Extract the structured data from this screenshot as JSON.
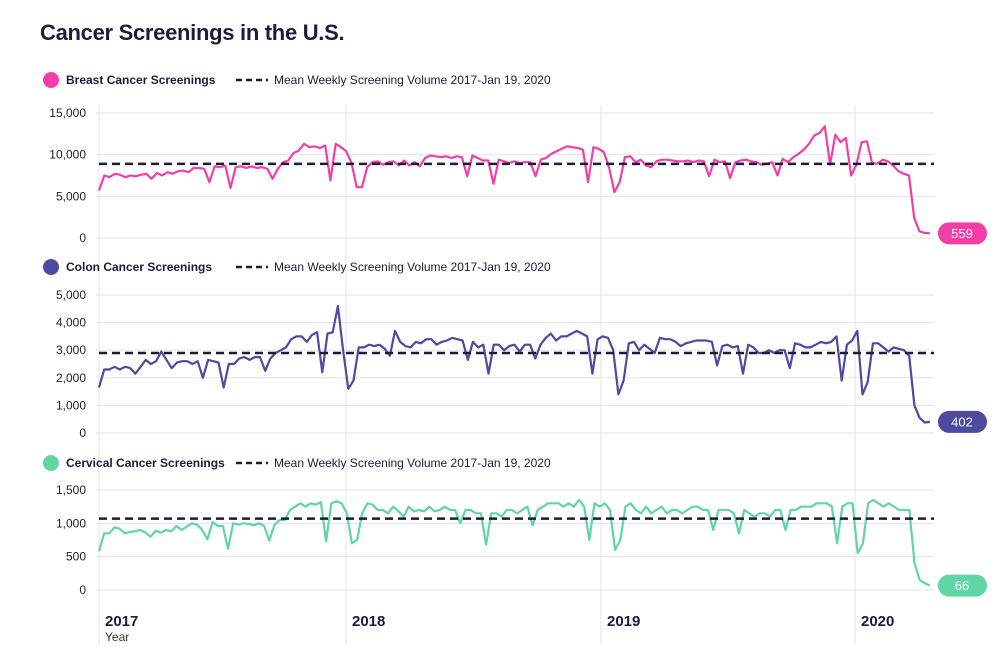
{
  "title": "Cancer Screenings in the U.S.",
  "chart_data": [
    {
      "type": "line",
      "series": [
        {
          "name": "Breast Cancer Screenings",
          "color": "#f23fa8",
          "values": [
            5700,
            7500,
            7300,
            7700,
            7600,
            7300,
            7500,
            7400,
            7600,
            7700,
            7100,
            7800,
            7500,
            7900,
            7700,
            8000,
            8100,
            7900,
            8400,
            8400,
            8300,
            6700,
            8600,
            8500,
            8700,
            6000,
            8500,
            8600,
            8400,
            8600,
            8400,
            8500,
            8300,
            7100,
            8300,
            9100,
            9300,
            10200,
            10500,
            11300,
            10900,
            11000,
            10800,
            11100,
            6900,
            11300,
            10900,
            10400,
            9000,
            6100,
            6100,
            8500,
            9100,
            9200,
            8800,
            9100,
            9200,
            8700,
            9300,
            8700,
            9100,
            8600,
            9600,
            9900,
            9800,
            9700,
            9800,
            9600,
            9800,
            9700,
            7400,
            9900,
            9600,
            9300,
            9300,
            6500,
            9400,
            9200,
            9000,
            9200,
            9000,
            9100,
            9100,
            7400,
            9400,
            9600,
            10100,
            10400,
            10700,
            11000,
            10900,
            10800,
            10600,
            6700,
            10900,
            10700,
            10300,
            8400,
            5500,
            6700,
            9700,
            9800,
            9100,
            9400,
            8700,
            8500,
            9200,
            9400,
            9400,
            9300,
            9200,
            9200,
            9300,
            9100,
            9300,
            9200,
            7400,
            9400,
            9100,
            9200,
            7200,
            9100,
            9300,
            9400,
            9200,
            9100,
            8800,
            8900,
            9100,
            7500,
            9500,
            9100,
            9700,
            10100,
            10600,
            11300,
            12300,
            12600,
            13400,
            8800,
            12400,
            11500,
            12000,
            7500,
            8800,
            11500,
            11600,
            9000,
            8900,
            9400,
            9200,
            8700,
            8000,
            7700,
            7500,
            2400,
            800,
            600,
            559
          ]
        },
        {
          "name": "Mean Weekly Screening Volume 2017-Jan 19, 2020",
          "value": 8900
        }
      ],
      "ylim": [
        0,
        15000
      ],
      "yticks": [
        "15,000",
        "10,000",
        "5,000",
        "0"
      ],
      "yticks_values": [
        15000,
        10000,
        5000,
        0
      ],
      "last_label": "559"
    },
    {
      "type": "line",
      "series": [
        {
          "name": "Colon Cancer Screenings",
          "color": "#4e4aa0",
          "values": [
            1650,
            2300,
            2300,
            2400,
            2300,
            2400,
            2350,
            2150,
            2400,
            2650,
            2500,
            2600,
            2950,
            2650,
            2350,
            2550,
            2600,
            2600,
            2500,
            2600,
            2000,
            2650,
            2600,
            2550,
            1650,
            2500,
            2500,
            2700,
            2750,
            2650,
            2750,
            2750,
            2250,
            2700,
            2900,
            3000,
            3100,
            3400,
            3500,
            3500,
            3300,
            3550,
            3650,
            2200,
            3600,
            3650,
            4600,
            3000,
            1600,
            1900,
            3100,
            3100,
            3200,
            3150,
            3200,
            3050,
            2800,
            3700,
            3300,
            3150,
            3100,
            3300,
            3250,
            3400,
            3400,
            3200,
            3300,
            3350,
            3450,
            3400,
            3350,
            2650,
            3300,
            3100,
            3200,
            2150,
            3200,
            3200,
            3000,
            3150,
            3200,
            2950,
            3200,
            3200,
            2700,
            3200,
            3450,
            3600,
            3350,
            3500,
            3500,
            3600,
            3700,
            3600,
            3500,
            2150,
            3400,
            3500,
            3450,
            3000,
            1400,
            1900,
            3250,
            3300,
            3000,
            3200,
            3050,
            2900,
            3450,
            3400,
            3400,
            3300,
            3150,
            3250,
            3300,
            3350,
            3350,
            3350,
            3300,
            2450,
            3150,
            3200,
            3100,
            3150,
            2150,
            3200,
            3100,
            2900,
            2900,
            3000,
            2900,
            3000,
            3000,
            2350,
            3250,
            3200,
            3100,
            3100,
            3200,
            3300,
            3250,
            3300,
            3500,
            1900,
            3200,
            3350,
            3700,
            1400,
            1850,
            3250,
            3250,
            3100,
            2950,
            3100,
            3050,
            3000,
            2800,
            1000,
            550,
            380,
            402
          ]
        },
        {
          "name": "Mean Weekly Screening Volume 2017-Jan 19, 2020",
          "value": 2900
        }
      ],
      "ylim": [
        0,
        5000
      ],
      "yticks": [
        "5,000",
        "4,000",
        "3,000",
        "2,000",
        "1,000",
        "0"
      ],
      "yticks_values": [
        5000,
        4000,
        3000,
        2000,
        1000,
        0
      ],
      "last_label": "402"
    },
    {
      "type": "line",
      "series": [
        {
          "name": "Cervical Cancer Screenings",
          "color": "#5fd6a4",
          "values": [
            580,
            850,
            850,
            940,
            920,
            850,
            870,
            880,
            900,
            860,
            800,
            890,
            860,
            900,
            880,
            960,
            900,
            950,
            1000,
            980,
            900,
            760,
            1020,
            960,
            960,
            620,
            1000,
            980,
            1000,
            990,
            970,
            1000,
            960,
            740,
            980,
            1050,
            1050,
            1200,
            1250,
            1300,
            1250,
            1300,
            1280,
            1320,
            730,
            1300,
            1330,
            1300,
            1150,
            700,
            750,
            1150,
            1300,
            1280,
            1200,
            1200,
            1150,
            1250,
            1180,
            1100,
            1250,
            1180,
            1200,
            1180,
            1250,
            1180,
            1200,
            1250,
            1200,
            1200,
            1000,
            1200,
            1200,
            1150,
            1150,
            680,
            1150,
            1150,
            1100,
            1200,
            1200,
            1150,
            1200,
            1250,
            970,
            1200,
            1250,
            1300,
            1300,
            1300,
            1250,
            1300,
            1250,
            1350,
            1250,
            750,
            1300,
            1250,
            1300,
            1200,
            600,
            750,
            1250,
            1300,
            1200,
            1150,
            1250,
            1150,
            1200,
            1250,
            1150,
            1200,
            1200,
            1150,
            1200,
            1250,
            1250,
            1200,
            1200,
            900,
            1200,
            1200,
            1200,
            1150,
            850,
            1200,
            1150,
            1100,
            1150,
            1150,
            1100,
            1200,
            1200,
            900,
            1200,
            1200,
            1250,
            1250,
            1250,
            1300,
            1300,
            1300,
            1250,
            700,
            1250,
            1300,
            1300,
            550,
            700,
            1300,
            1350,
            1300,
            1250,
            1300,
            1250,
            1200,
            1200,
            1200,
            400,
            150,
            100,
            66
          ]
        },
        {
          "name": "Mean Weekly Screening Volume 2017-Jan 19, 2020",
          "value": 1070
        }
      ],
      "ylim": [
        0,
        1500
      ],
      "yticks": [
        "1,500",
        "1,000",
        "500",
        "0"
      ],
      "yticks_values": [
        1500,
        1000,
        500,
        0
      ],
      "last_label": "66"
    }
  ],
  "x_axis": {
    "years": [
      "2017",
      "2018",
      "2019",
      "2020"
    ],
    "xlabel": "Year"
  },
  "colors": {
    "mean_line": "#1d1b3a",
    "grid": "#e4e4e4"
  }
}
